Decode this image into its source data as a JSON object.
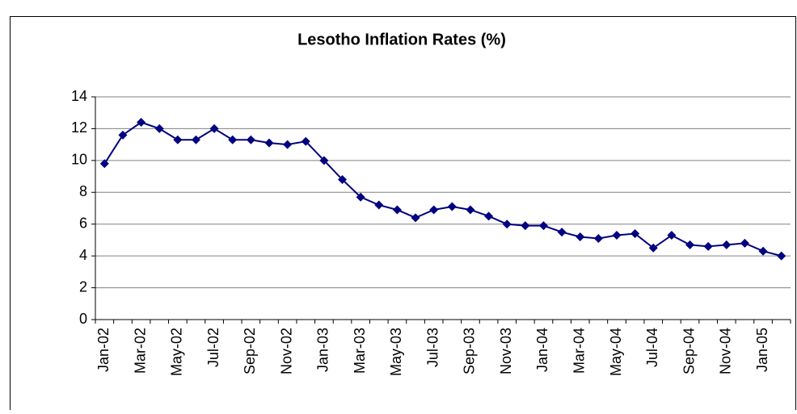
{
  "chart_data": {
    "type": "line",
    "title": "Lesotho Inflation Rates (%)",
    "categories": [
      "Jan-02",
      null,
      "Mar-02",
      null,
      "May-02",
      null,
      "Jul-02",
      null,
      "Sep-02",
      null,
      "Nov-02",
      null,
      "Jan-03",
      null,
      "Mar-03",
      null,
      "May-03",
      null,
      "Jul-03",
      null,
      "Sep-03",
      null,
      "Nov-03",
      null,
      "Jan-04",
      null,
      "Mar-04",
      null,
      "May-04",
      null,
      "Jul-04",
      null,
      "Sep-04",
      null,
      "Nov-04",
      null,
      "Jan-05",
      null
    ],
    "series": [
      {
        "color": "#000080",
        "values": [
          9.8,
          11.6,
          12.4,
          12.0,
          11.3,
          11.3,
          12.0,
          11.3,
          11.3,
          11.1,
          11.0,
          11.2,
          10.0,
          8.8,
          7.7,
          7.2,
          6.9,
          6.4,
          6.9,
          7.1,
          6.9,
          6.5,
          6.0,
          5.9,
          5.9,
          5.5,
          5.2,
          5.1,
          5.3,
          5.4,
          4.5,
          5.3,
          4.7,
          4.6,
          4.7,
          4.8,
          4.3,
          4.0
        ]
      }
    ],
    "ylim": [
      0,
      14
    ],
    "yticks": [
      0,
      2,
      4,
      6,
      8,
      10,
      12,
      14
    ],
    "grid": true
  }
}
